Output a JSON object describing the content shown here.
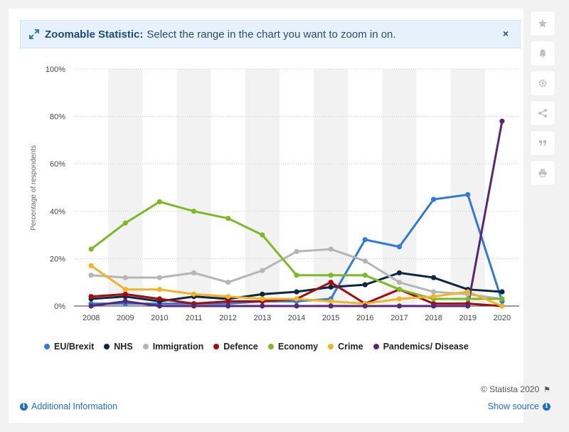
{
  "banner": {
    "bold": "Zoomable Statistic:",
    "text": "Select the range in the chart you want to zoom in on.",
    "close": "×"
  },
  "sidebar": [
    {
      "name": "star-icon"
    },
    {
      "name": "bell-icon"
    },
    {
      "name": "gear-icon"
    },
    {
      "name": "share-icon"
    },
    {
      "name": "quote-icon"
    },
    {
      "name": "print-icon"
    }
  ],
  "footer": {
    "credit": "© Statista 2020",
    "additional_info": "Additional Information",
    "show_source": "Show source"
  },
  "chart_data": {
    "type": "line",
    "title": "",
    "xlabel": "",
    "ylabel": "Percentage of respondents",
    "ylim": [
      0,
      100
    ],
    "yticks": [
      "0%",
      "20%",
      "40%",
      "60%",
      "80%",
      "100%"
    ],
    "grid": true,
    "legend_position": "bottom",
    "categories": [
      "2008",
      "2009",
      "2010",
      "2011",
      "2012",
      "2013",
      "2014",
      "2015",
      "2016",
      "2017",
      "2018",
      "2019",
      "2020"
    ],
    "series": [
      {
        "name": "EU/Brexit",
        "color": "#2e7bd6",
        "values": [
          1,
          1,
          1,
          1,
          1,
          2,
          2,
          3,
          28,
          25,
          45,
          47,
          2
        ]
      },
      {
        "name": "NHS",
        "color": "#0c2841",
        "values": [
          3,
          4,
          2,
          4,
          3,
          5,
          6,
          8,
          9,
          14,
          12,
          7,
          6
        ]
      },
      {
        "name": "Immigration",
        "color": "#b5b5b5",
        "values": [
          13,
          12,
          12,
          14,
          10,
          15,
          23,
          24,
          19,
          10,
          6,
          5,
          3
        ]
      },
      {
        "name": "Defence",
        "color": "#a30d12",
        "values": [
          4,
          5,
          3,
          1,
          2,
          2,
          3,
          10,
          1,
          7,
          1,
          1,
          0
        ]
      },
      {
        "name": "Economy",
        "color": "#7cb925",
        "values": [
          24,
          35,
          44,
          40,
          37,
          30,
          13,
          13,
          13,
          7,
          3,
          3,
          3
        ]
      },
      {
        "name": "Crime",
        "color": "#f0b428",
        "values": [
          17,
          7,
          7,
          5,
          4,
          3,
          3,
          2,
          1,
          3,
          4,
          6,
          0
        ]
      },
      {
        "name": "Pandemics/ Disease",
        "color": "#59277a",
        "values": [
          0,
          2,
          0,
          0,
          0,
          0,
          0,
          0,
          0,
          0,
          0,
          0,
          78
        ]
      }
    ]
  }
}
